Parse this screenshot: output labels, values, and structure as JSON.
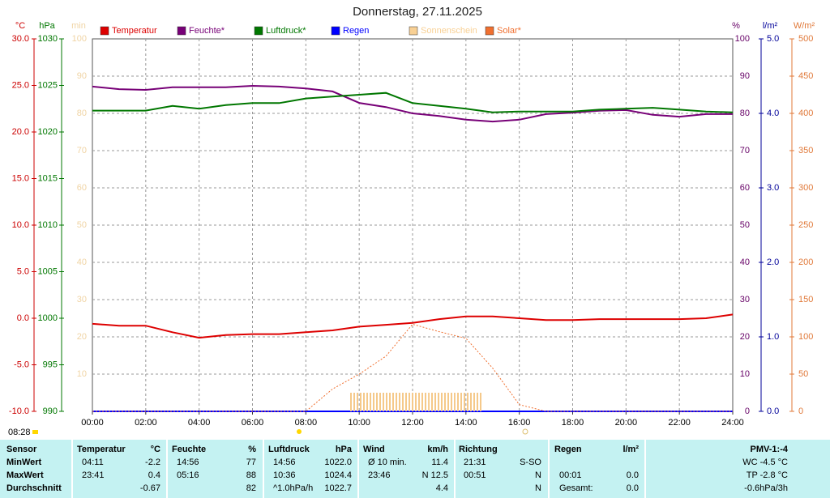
{
  "chart_data": {
    "type": "line",
    "title": "Donnerstag, 27.11.2025",
    "sunrise": "08:28",
    "x": [
      0,
      1,
      2,
      3,
      4,
      5,
      6,
      7,
      8,
      9,
      10,
      11,
      12,
      13,
      14,
      15,
      16,
      17,
      18,
      19,
      20,
      21,
      22,
      23,
      24
    ],
    "xlim": [
      0,
      24
    ],
    "xticks": [
      {
        "value": 0,
        "label": "00:00"
      },
      {
        "value": 2,
        "label": "02:00"
      },
      {
        "value": 4,
        "label": "04:00"
      },
      {
        "value": 6,
        "label": "06:00"
      },
      {
        "value": 8,
        "label": "08:00"
      },
      {
        "value": 10,
        "label": "10:00"
      },
      {
        "value": 12,
        "label": "12:00"
      },
      {
        "value": 14,
        "label": "14:00"
      },
      {
        "value": 16,
        "label": "16:00"
      },
      {
        "value": 18,
        "label": "18:00"
      },
      {
        "value": 20,
        "label": "20:00"
      },
      {
        "value": 22,
        "label": "22:00"
      },
      {
        "value": 24,
        "label": "24:00"
      }
    ],
    "grid": true,
    "axes": [
      {
        "label": "°C",
        "color": "#cc0000",
        "side": "left",
        "lim": [
          -10,
          30
        ],
        "ticks": [
          {
            "value": -10,
            "label": "-10.0"
          },
          {
            "value": -5,
            "label": "-5.0"
          },
          {
            "value": 0,
            "label": "0.0"
          },
          {
            "value": 5,
            "label": "5.0"
          },
          {
            "value": 10,
            "label": "10.0"
          },
          {
            "value": 15,
            "label": "15.0"
          },
          {
            "value": 20,
            "label": "20.0"
          },
          {
            "value": 25,
            "label": "25.0"
          },
          {
            "value": 30,
            "label": "30.0"
          }
        ]
      },
      {
        "label": "hPa",
        "color": "#007700",
        "side": "left",
        "lim": [
          990,
          1030
        ],
        "ticks": [
          990,
          995,
          1000,
          1005,
          1010,
          1015,
          1020,
          1025,
          1030
        ]
      },
      {
        "label": "min",
        "color": "#f0d4a4",
        "side": "left",
        "lim": [
          0,
          100
        ],
        "ticks": [
          10,
          20,
          30,
          40,
          50,
          60,
          70,
          80,
          90,
          100
        ]
      },
      {
        "label": "%",
        "color": "#660066",
        "side": "right",
        "lim": [
          0,
          100
        ],
        "ticks": [
          0,
          10,
          20,
          30,
          40,
          50,
          60,
          70,
          80,
          90,
          100
        ]
      },
      {
        "label": "l/m²",
        "color": "#000099",
        "side": "right",
        "lim": [
          0,
          5
        ],
        "ticks": [
          {
            "value": 0,
            "label": "0.0"
          },
          {
            "value": 1,
            "label": "1.0"
          },
          {
            "value": 2,
            "label": "2.0"
          },
          {
            "value": 3,
            "label": "3.0"
          },
          {
            "value": 4,
            "label": "4.0"
          },
          {
            "value": 5,
            "label": "5.0"
          }
        ]
      },
      {
        "label": "W/m²",
        "color": "#e07838",
        "side": "right",
        "lim": [
          0,
          500
        ],
        "ticks": [
          0,
          50,
          100,
          150,
          200,
          250,
          300,
          350,
          400,
          450,
          500
        ]
      }
    ],
    "series": [
      {
        "name": "Temperatur",
        "color": "#dd0000",
        "axis": 0,
        "values": [
          -0.6,
          -0.8,
          -0.8,
          -1.5,
          -2.1,
          -1.8,
          -1.7,
          -1.7,
          -1.5,
          -1.3,
          -0.9,
          -0.7,
          -0.5,
          -0.1,
          0.2,
          0.2,
          0.0,
          -0.2,
          -0.2,
          -0.1,
          -0.1,
          -0.1,
          -0.1,
          0.0,
          0.4
        ]
      },
      {
        "name": "Feuchte*",
        "color": "#770077",
        "axis": 3,
        "values": [
          87.2,
          86.5,
          86.3,
          87.0,
          87.0,
          87.0,
          87.4,
          87.2,
          86.7,
          85.9,
          82.8,
          81.7,
          80.0,
          79.3,
          78.3,
          77.8,
          78.3,
          79.8,
          80.2,
          80.7,
          80.9,
          79.6,
          79.1,
          79.8,
          79.8
        ]
      },
      {
        "name": "Luftdruck*",
        "color": "#007700",
        "axis": 1,
        "values": [
          1022.3,
          1022.3,
          1022.3,
          1022.8,
          1022.5,
          1022.9,
          1023.1,
          1023.1,
          1023.6,
          1023.8,
          1024.0,
          1024.2,
          1023.1,
          1022.8,
          1022.5,
          1022.1,
          1022.2,
          1022.2,
          1022.2,
          1022.4,
          1022.5,
          1022.6,
          1022.4,
          1022.2,
          1022.1
        ]
      },
      {
        "name": "Regen",
        "color": "#0000ff",
        "axis": 4,
        "values": [
          0,
          0,
          0,
          0,
          0,
          0,
          0,
          0,
          0,
          0,
          0,
          0,
          0,
          0,
          0,
          0,
          0,
          0,
          0,
          0,
          0,
          0,
          0,
          0,
          0
        ]
      },
      {
        "name": "Sonnenschein",
        "color": "#f8d094",
        "axis": 2,
        "kind": "bar",
        "values": [
          null,
          null,
          null,
          null,
          null,
          null,
          null,
          null,
          null,
          null,
          5,
          5,
          5,
          5,
          5,
          null,
          null,
          null,
          null,
          null,
          null,
          null,
          null,
          null,
          null
        ]
      },
      {
        "name": "Solar*",
        "color": "#f07030",
        "axis": 5,
        "line_style": "dotted",
        "values": [
          0,
          0,
          0,
          0,
          0,
          0,
          0,
          0,
          0,
          30,
          50,
          74,
          117,
          107,
          98,
          58,
          9,
          0,
          0,
          0,
          0,
          0,
          0,
          0,
          0
        ]
      }
    ]
  },
  "table": {
    "header": [
      [
        "Sensor"
      ],
      [
        "Temperatur",
        "°C"
      ],
      [
        "Feuchte",
        "%"
      ],
      [
        "Luftdruck",
        "hPa"
      ],
      [
        "Wind",
        "km/h"
      ],
      [
        "Richtung"
      ],
      [
        "Regen",
        "l/m²"
      ],
      [
        "PMV-1:-4"
      ]
    ],
    "rows": [
      [
        [
          "MinWert"
        ],
        [
          "04:11",
          "-2.2"
        ],
        [
          "14:56",
          "77"
        ],
        [
          "14:56",
          "1022.0"
        ],
        [
          "Ø 10 min.",
          "11.4"
        ],
        [
          "21:31",
          "S-SO"
        ],
        [],
        [
          "WC -4.5 °C"
        ]
      ],
      [
        [
          "MaxWert"
        ],
        [
          "23:41",
          "0.4"
        ],
        [
          "05:16",
          "88"
        ],
        [
          "10:36",
          "1024.4"
        ],
        [
          "23:46",
          "N 12.5"
        ],
        [
          "00:51",
          "N"
        ],
        [
          "00:01",
          "0.0"
        ],
        [
          "TP -2.8 °C"
        ]
      ],
      [
        [
          "Durchschnitt"
        ],
        [
          "-0.67"
        ],
        [
          "82"
        ],
        [
          "^1.0hPa/h",
          "1022.7"
        ],
        [
          "4.4"
        ],
        [
          "N"
        ],
        [
          "Gesamt:",
          "0.0"
        ],
        [
          "-0.6hPa/3h"
        ]
      ]
    ]
  }
}
